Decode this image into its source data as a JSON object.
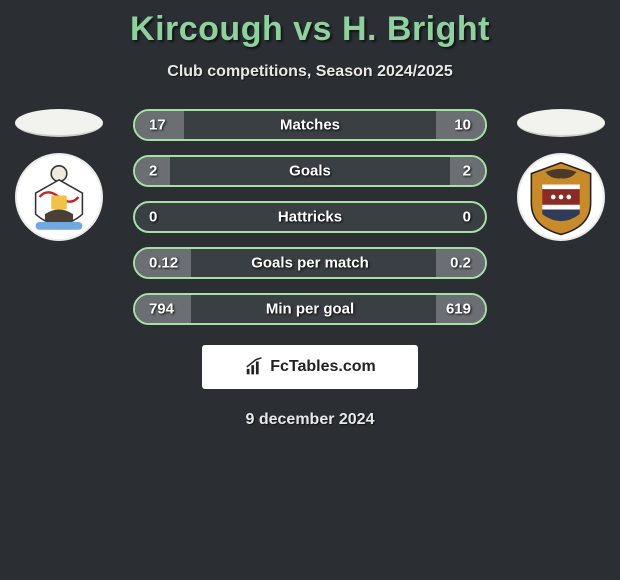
{
  "title": "Kircough vs H. Bright",
  "title_color": "#8fd19e",
  "subtitle": "Club competitions, Season 2024/2025",
  "background_color": "#2b2f33",
  "bar_track_color": "#3a3f44",
  "bar_border_color": "#a7e0a7",
  "fill_left_color": "#6b6f74",
  "fill_right_color": "#6b6f74",
  "text_color": "#ffffff",
  "bars": [
    {
      "label": "Matches",
      "left_val": "17",
      "right_val": "10",
      "left_pct": 14,
      "right_pct": 14
    },
    {
      "label": "Goals",
      "left_val": "2",
      "right_val": "2",
      "left_pct": 10,
      "right_pct": 10
    },
    {
      "label": "Hattricks",
      "left_val": "0",
      "right_val": "0",
      "left_pct": 0,
      "right_pct": 0
    },
    {
      "label": "Goals per match",
      "left_val": "0.12",
      "right_val": "0.2",
      "left_pct": 16,
      "right_pct": 14
    },
    {
      "label": "Min per goal",
      "left_val": "794",
      "right_val": "619",
      "left_pct": 16,
      "right_pct": 14
    }
  ],
  "brand_text": "FcTables.com",
  "date_text": "9 december 2024",
  "crest_left": {
    "bg": "#ffffff",
    "accent1": "#c62127",
    "accent2": "#4a4036",
    "accent3": "#f0c24a"
  },
  "crest_right": {
    "bg": "#ffffff",
    "accent1": "#c98a2a",
    "accent2": "#2f3b57",
    "accent3": "#8a2b28"
  }
}
